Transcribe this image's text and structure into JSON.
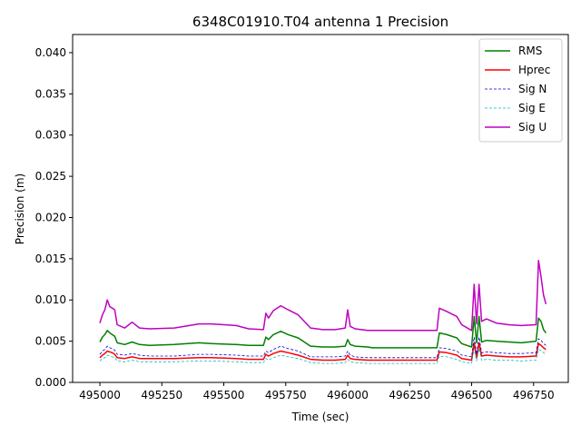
{
  "chart_data": {
    "type": "line",
    "title": "6348C01910.T04 antenna 1 Precision",
    "xlabel": "Time (sec)",
    "ylabel": "Precision (m)",
    "xlim": [
      494890,
      496890
    ],
    "ylim": [
      0.0,
      0.0422
    ],
    "xticks": [
      495000,
      495250,
      495500,
      495750,
      496000,
      496250,
      496500,
      496750
    ],
    "xtick_labels": [
      "495000",
      "495250",
      "495500",
      "495750",
      "496000",
      "496250",
      "496500",
      "496750"
    ],
    "yticks": [
      0.0,
      0.005,
      0.01,
      0.015,
      0.02,
      0.025,
      0.03,
      0.035,
      0.04
    ],
    "ytick_labels": [
      "0.000",
      "0.005",
      "0.010",
      "0.015",
      "0.020",
      "0.025",
      "0.030",
      "0.035",
      "0.040"
    ],
    "grid": false,
    "legend_position": "top-right",
    "series": [
      {
        "name": "RMS",
        "color": "#008000",
        "style": "solid",
        "x": [
          495000,
          495010,
          495020,
          495030,
          495040,
          495050,
          495060,
          495070,
          495100,
          495130,
          495160,
          495200,
          495300,
          495400,
          495450,
          495550,
          495600,
          495660,
          495670,
          495680,
          495700,
          495730,
          495760,
          495800,
          495850,
          495900,
          495950,
          495990,
          496000,
          496010,
          496030,
          496080,
          496100,
          496200,
          496360,
          496370,
          496400,
          496440,
          496460,
          496500,
          496510,
          496520,
          496530,
          496540,
          496560,
          496600,
          496650,
          496700,
          496760,
          496770,
          496780,
          496790,
          496800
        ],
        "values": [
          0.0049,
          0.0055,
          0.0058,
          0.0063,
          0.006,
          0.0058,
          0.0056,
          0.0048,
          0.0046,
          0.0049,
          0.0046,
          0.0045,
          0.0046,
          0.0048,
          0.0047,
          0.0046,
          0.0045,
          0.0045,
          0.0055,
          0.0052,
          0.0058,
          0.0062,
          0.0058,
          0.0054,
          0.0044,
          0.0043,
          0.0043,
          0.0044,
          0.0052,
          0.0046,
          0.0044,
          0.0043,
          0.0042,
          0.0042,
          0.0042,
          0.006,
          0.0058,
          0.0054,
          0.0047,
          0.0043,
          0.008,
          0.0048,
          0.008,
          0.0049,
          0.0051,
          0.005,
          0.0049,
          0.0048,
          0.005,
          0.0078,
          0.0074,
          0.0064,
          0.006
        ]
      },
      {
        "name": "Hprec",
        "color": "#ff0000",
        "style": "solid",
        "x": [
          495000,
          495010,
          495020,
          495030,
          495040,
          495050,
          495060,
          495070,
          495100,
          495130,
          495160,
          495200,
          495300,
          495400,
          495450,
          495550,
          495600,
          495660,
          495670,
          495680,
          495700,
          495730,
          495760,
          495800,
          495850,
          495900,
          495950,
          495990,
          496000,
          496010,
          496030,
          496080,
          496100,
          496200,
          496360,
          496370,
          496400,
          496440,
          496460,
          496500,
          496510,
          496520,
          496530,
          496540,
          496560,
          496600,
          496650,
          496700,
          496760,
          496770,
          496780,
          496790,
          496800
        ],
        "values": [
          0.003,
          0.0033,
          0.0035,
          0.0038,
          0.0037,
          0.0036,
          0.0034,
          0.003,
          0.0029,
          0.0031,
          0.0029,
          0.0029,
          0.0029,
          0.003,
          0.003,
          0.0029,
          0.0028,
          0.0028,
          0.0034,
          0.0032,
          0.0035,
          0.0038,
          0.0036,
          0.0033,
          0.0028,
          0.0027,
          0.0027,
          0.0028,
          0.0033,
          0.0029,
          0.0028,
          0.0027,
          0.0027,
          0.0027,
          0.0027,
          0.0037,
          0.0036,
          0.0033,
          0.0029,
          0.0027,
          0.0048,
          0.003,
          0.0048,
          0.0032,
          0.0033,
          0.0032,
          0.0031,
          0.0031,
          0.0032,
          0.0047,
          0.0045,
          0.0042,
          0.004
        ]
      },
      {
        "name": "Sig N",
        "color": "#0000cc",
        "style": "dashed",
        "x": [
          495000,
          495010,
          495020,
          495030,
          495040,
          495050,
          495060,
          495070,
          495100,
          495130,
          495160,
          495200,
          495300,
          495400,
          495450,
          495550,
          495600,
          495660,
          495670,
          495680,
          495700,
          495730,
          495760,
          495800,
          495850,
          495900,
          495950,
          495990,
          496000,
          496010,
          496030,
          496080,
          496100,
          496200,
          496360,
          496370,
          496400,
          496440,
          496460,
          496500,
          496510,
          496520,
          496530,
          496540,
          496560,
          496600,
          496650,
          496700,
          496760,
          496770,
          496780,
          496790,
          496800
        ],
        "values": [
          0.0034,
          0.0038,
          0.004,
          0.0044,
          0.0042,
          0.0041,
          0.0039,
          0.0034,
          0.0033,
          0.0035,
          0.0033,
          0.0032,
          0.0032,
          0.0034,
          0.0034,
          0.0033,
          0.0032,
          0.0032,
          0.0038,
          0.0036,
          0.004,
          0.0044,
          0.0041,
          0.0038,
          0.0031,
          0.0031,
          0.0031,
          0.0032,
          0.0038,
          0.0033,
          0.0031,
          0.003,
          0.003,
          0.003,
          0.003,
          0.0042,
          0.0041,
          0.0038,
          0.0033,
          0.0031,
          0.0055,
          0.0034,
          0.0055,
          0.0036,
          0.0037,
          0.0036,
          0.0035,
          0.0035,
          0.0036,
          0.0053,
          0.0051,
          0.0047,
          0.0045
        ]
      },
      {
        "name": "Sig E",
        "color": "#00bfbf",
        "style": "dashed",
        "x": [
          495000,
          495010,
          495020,
          495030,
          495040,
          495050,
          495060,
          495070,
          495100,
          495130,
          495160,
          495200,
          495300,
          495400,
          495450,
          495550,
          495600,
          495660,
          495670,
          495680,
          495700,
          495730,
          495760,
          495800,
          495850,
          495900,
          495950,
          495990,
          496000,
          496010,
          496030,
          496080,
          496100,
          496200,
          496360,
          496370,
          496400,
          496440,
          496460,
          496500,
          496510,
          496520,
          496530,
          496540,
          496560,
          496600,
          496650,
          496700,
          496760,
          496770,
          496780,
          496790,
          496800
        ],
        "values": [
          0.0026,
          0.0029,
          0.003,
          0.0033,
          0.0032,
          0.0031,
          0.003,
          0.0026,
          0.0025,
          0.0027,
          0.0025,
          0.0025,
          0.0025,
          0.0026,
          0.0026,
          0.0025,
          0.0024,
          0.0024,
          0.0029,
          0.0027,
          0.003,
          0.0033,
          0.0031,
          0.0029,
          0.0024,
          0.0023,
          0.0023,
          0.0024,
          0.0028,
          0.0025,
          0.0024,
          0.0023,
          0.0023,
          0.0023,
          0.0023,
          0.0032,
          0.0031,
          0.0028,
          0.0025,
          0.0023,
          0.0041,
          0.0026,
          0.0041,
          0.0027,
          0.0028,
          0.0027,
          0.0027,
          0.0026,
          0.0027,
          0.004,
          0.0039,
          0.0036,
          0.0034
        ]
      },
      {
        "name": "Sig U",
        "color": "#bf00bf",
        "style": "solid",
        "x": [
          495000,
          495010,
          495020,
          495030,
          495040,
          495050,
          495060,
          495070,
          495100,
          495130,
          495160,
          495200,
          495300,
          495400,
          495450,
          495550,
          495600,
          495660,
          495670,
          495680,
          495700,
          495730,
          495760,
          495800,
          495850,
          495900,
          495950,
          495990,
          496000,
          496010,
          496030,
          496080,
          496100,
          496200,
          496360,
          496370,
          496400,
          496440,
          496460,
          496500,
          496510,
          496520,
          496530,
          496540,
          496560,
          496600,
          496650,
          496700,
          496760,
          496770,
          496780,
          496790,
          496800
        ],
        "values": [
          0.0072,
          0.0082,
          0.0088,
          0.01,
          0.0092,
          0.009,
          0.0088,
          0.007,
          0.0066,
          0.0073,
          0.0066,
          0.0065,
          0.0066,
          0.0071,
          0.0071,
          0.0069,
          0.0065,
          0.0064,
          0.0084,
          0.0078,
          0.0087,
          0.0093,
          0.0088,
          0.0082,
          0.0066,
          0.0064,
          0.0064,
          0.0066,
          0.0088,
          0.0068,
          0.0065,
          0.0063,
          0.0063,
          0.0063,
          0.0063,
          0.009,
          0.0086,
          0.008,
          0.007,
          0.0063,
          0.0119,
          0.0071,
          0.0119,
          0.0074,
          0.0077,
          0.0072,
          0.007,
          0.0069,
          0.007,
          0.0148,
          0.0128,
          0.0106,
          0.0095
        ]
      }
    ]
  }
}
